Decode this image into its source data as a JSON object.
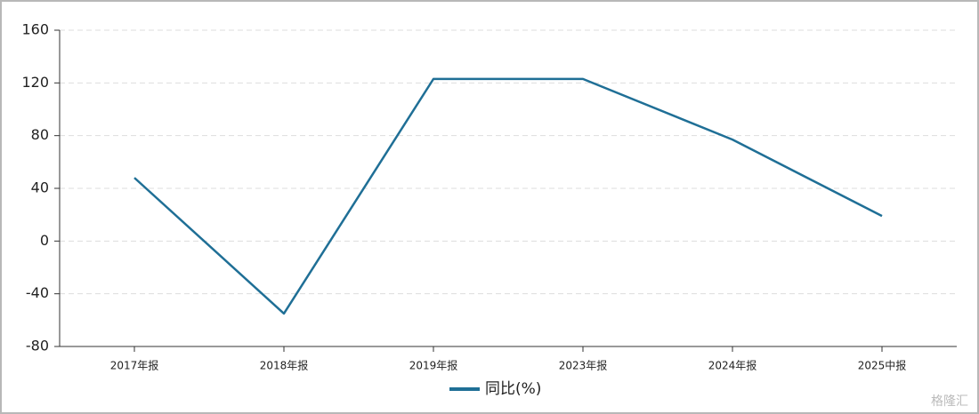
{
  "chart_data": {
    "type": "line",
    "categories": [
      "2017年报",
      "2018年报",
      "2019年报",
      "2023年报",
      "2024年报",
      "2025中报"
    ],
    "series": [
      {
        "name": "同比(%)",
        "color": "#1f6f96",
        "values": [
          48,
          -55,
          123,
          123,
          77,
          19
        ]
      }
    ],
    "ylim": [
      -80,
      160
    ],
    "yticks": [
      -80,
      -40,
      0,
      40,
      80,
      120,
      160
    ],
    "grid": true,
    "legend": "bottom",
    "watermark": "格隆汇"
  }
}
